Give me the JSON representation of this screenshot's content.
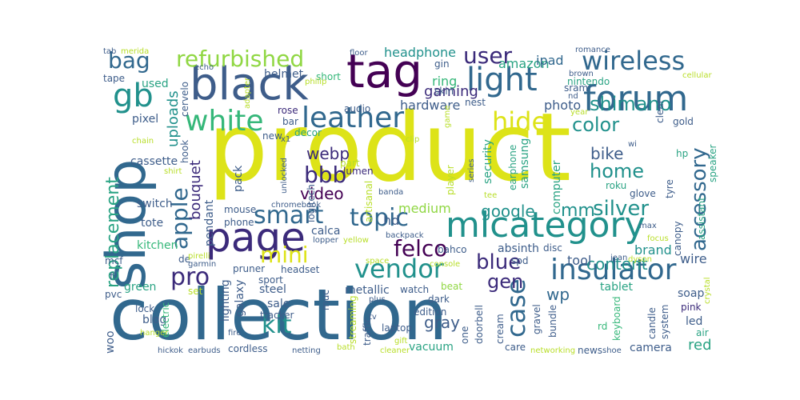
{
  "palette": {
    "dark_purple": "#440154",
    "indigo": "#3b2a7a",
    "blue": "#31688e",
    "slate": "#3e5d8a",
    "teal": "#21918c",
    "teal_green": "#29a383",
    "green": "#35b779",
    "lime": "#90d743",
    "yellow": "#dde318",
    "light": "#b8de29"
  },
  "words": [
    {
      "text": "product",
      "color": "#dde318"
    },
    {
      "text": "collection",
      "color": "#31688e"
    },
    {
      "text": "shop",
      "color": "#31688e"
    },
    {
      "text": "black",
      "color": "#3e5d8a"
    },
    {
      "text": "tag",
      "color": "#440154"
    },
    {
      "text": "page",
      "color": "#3b2a7a"
    },
    {
      "text": "mlcategory",
      "color": "#21918c"
    },
    {
      "text": "forum",
      "color": "#31688e"
    },
    {
      "text": "light",
      "color": "#31688e"
    },
    {
      "text": "leather",
      "color": "#31688e"
    },
    {
      "text": "gb",
      "color": "#21918c"
    },
    {
      "text": "white",
      "color": "#35b779"
    },
    {
      "text": "wireless",
      "color": "#31688e"
    },
    {
      "text": "refurbished",
      "color": "#90d743"
    },
    {
      "text": "bag",
      "color": "#31688e"
    },
    {
      "text": "user",
      "color": "#3b2a7a"
    },
    {
      "text": "hide",
      "color": "#dde318"
    },
    {
      "text": "color",
      "color": "#21918c"
    },
    {
      "text": "shimano",
      "color": "#21918c"
    },
    {
      "text": "home",
      "color": "#21918c"
    },
    {
      "text": "smart",
      "color": "#31688e"
    },
    {
      "text": "topic",
      "color": "#31688e"
    },
    {
      "text": "insulator",
      "color": "#31688e"
    },
    {
      "text": "vendor",
      "color": "#21918c"
    },
    {
      "text": "mini",
      "color": "#dde318"
    },
    {
      "text": "pro",
      "color": "#3b2a7a"
    },
    {
      "text": "felco",
      "color": "#440154"
    },
    {
      "text": "blue",
      "color": "#3b2a7a"
    },
    {
      "text": "case",
      "color": "#31688e"
    },
    {
      "text": "gen",
      "color": "#3b2a7a"
    },
    {
      "text": "mm",
      "color": "#21918c"
    },
    {
      "text": "silver",
      "color": "#21918c"
    },
    {
      "text": "accessory",
      "color": "#31688e"
    },
    {
      "text": "apple",
      "color": "#31688e"
    },
    {
      "text": "bbb",
      "color": "#3b2a7a"
    },
    {
      "text": "video",
      "color": "#440154"
    },
    {
      "text": "webp",
      "color": "#3b2a7a"
    },
    {
      "text": "kit",
      "color": "#21918c"
    },
    {
      "text": "replacement",
      "color": "#29a383"
    },
    {
      "text": "bouquet",
      "color": "#3b2a7a"
    },
    {
      "text": "uploads",
      "color": "#21918c"
    },
    {
      "text": "google",
      "color": "#21918c"
    },
    {
      "text": "bike",
      "color": "#3e5d8a"
    },
    {
      "text": "content",
      "color": "#21918c"
    },
    {
      "text": "wp",
      "color": "#31688e"
    },
    {
      "text": "gaming",
      "color": "#3b2a7a"
    },
    {
      "text": "hardware",
      "color": "#3e5d8a"
    },
    {
      "text": "headphone",
      "color": "#21918c"
    },
    {
      "text": "amazon",
      "color": "#29a383"
    },
    {
      "text": "ipad",
      "color": "#31688e"
    },
    {
      "text": "ring",
      "color": "#35b779"
    },
    {
      "text": "hd",
      "color": "#3e5d8a"
    },
    {
      "text": "medium",
      "color": "#90d743"
    },
    {
      "text": "brand",
      "color": "#21918c"
    },
    {
      "text": "red",
      "color": "#29a383"
    },
    {
      "text": "tool",
      "color": "#3e5d8a"
    },
    {
      "text": "wire",
      "color": "#3e5d8a"
    },
    {
      "text": "gray",
      "color": "#3e5d8a"
    },
    {
      "text": "blog",
      "color": "#3e5d8a"
    },
    {
      "text": "sale",
      "color": "#3e5d8a"
    },
    {
      "text": "steel",
      "color": "#3e5d8a"
    },
    {
      "text": "green",
      "color": "#29a383"
    },
    {
      "text": "kitchen",
      "color": "#35b779"
    },
    {
      "text": "tote",
      "color": "#3e5d8a"
    },
    {
      "text": "switch",
      "color": "#3e5d8a"
    },
    {
      "text": "cassette",
      "color": "#3e5d8a"
    },
    {
      "text": "pixel",
      "color": "#3e5d8a"
    },
    {
      "text": "used",
      "color": "#29a383"
    },
    {
      "text": "tape",
      "color": "#3e5d8a"
    },
    {
      "text": "helmet",
      "color": "#3e5d8a"
    },
    {
      "text": "short",
      "color": "#35b779"
    },
    {
      "text": "rose",
      "color": "#3b2a7a"
    },
    {
      "text": "audio",
      "color": "#3e5d8a"
    },
    {
      "text": "bar",
      "color": "#3e5d8a"
    },
    {
      "text": "decor",
      "color": "#29a383"
    },
    {
      "text": "new",
      "color": "#3e5d8a"
    },
    {
      "text": "pack",
      "color": "#3e5d8a"
    },
    {
      "text": "mouse",
      "color": "#3e5d8a"
    },
    {
      "text": "phone",
      "color": "#3e5d8a"
    },
    {
      "text": "calca",
      "color": "#3e5d8a"
    },
    {
      "text": "lumen",
      "color": "#3b2a7a"
    },
    {
      "text": "security",
      "color": "#29a383"
    },
    {
      "text": "photo",
      "color": "#3e5d8a"
    },
    {
      "text": "computer",
      "color": "#29a383"
    },
    {
      "text": "samsung",
      "color": "#29a383"
    },
    {
      "text": "earphone",
      "color": "#29a383"
    },
    {
      "text": "absinth",
      "color": "#3e5d8a"
    },
    {
      "text": "disc",
      "color": "#3e5d8a"
    },
    {
      "text": "spd",
      "color": "#3e5d8a"
    },
    {
      "text": "tablet",
      "color": "#29a383"
    },
    {
      "text": "soap",
      "color": "#3e5d8a"
    },
    {
      "text": "pink",
      "color": "#3b2a7a"
    },
    {
      "text": "led",
      "color": "#3e5d8a"
    },
    {
      "text": "air",
      "color": "#29a383"
    },
    {
      "text": "camera",
      "color": "#3e5d8a"
    },
    {
      "text": "news",
      "color": "#3e5d8a"
    },
    {
      "text": "shoe",
      "color": "#3e5d8a"
    },
    {
      "text": "care",
      "color": "#3e5d8a"
    },
    {
      "text": "bundle",
      "color": "#3e5d8a"
    },
    {
      "text": "gravel",
      "color": "#3e5d8a"
    },
    {
      "text": "cream",
      "color": "#3e5d8a"
    },
    {
      "text": "edition",
      "color": "#3e5d8a"
    },
    {
      "text": "beat",
      "color": "#90d743"
    },
    {
      "text": "watch",
      "color": "#3e5d8a"
    },
    {
      "text": "metallic",
      "color": "#3e5d8a"
    },
    {
      "text": "streaming",
      "color": "#b8de29"
    },
    {
      "text": "traffic",
      "color": "#3e5d8a"
    },
    {
      "text": "laptop",
      "color": "#3e5d8a"
    },
    {
      "text": "doorbell",
      "color": "#3e5d8a"
    },
    {
      "text": "one",
      "color": "#3e5d8a"
    },
    {
      "text": "vacuum",
      "color": "#29a383"
    },
    {
      "text": "cordless",
      "color": "#3e5d8a"
    },
    {
      "text": "earbuds",
      "color": "#3e5d8a"
    },
    {
      "text": "netting",
      "color": "#3e5d8a"
    },
    {
      "text": "bath",
      "color": "#b8de29"
    },
    {
      "text": "cleaner",
      "color": "#b8de29"
    },
    {
      "text": "gift",
      "color": "#b8de29"
    },
    {
      "text": "hickok",
      "color": "#3e5d8a"
    },
    {
      "text": "woo",
      "color": "#3e5d8a"
    },
    {
      "text": "fi",
      "color": "#3e5d8a"
    },
    {
      "text": "pvc",
      "color": "#3e5d8a"
    },
    {
      "text": "mcf",
      "color": "#3e5d8a"
    },
    {
      "text": "lock",
      "color": "#3e5d8a"
    },
    {
      "text": "electric",
      "color": "#35b779"
    },
    {
      "text": "hanger",
      "color": "#b8de29"
    },
    {
      "text": "fire",
      "color": "#3e5d8a"
    },
    {
      "text": "sport",
      "color": "#3e5d8a"
    },
    {
      "text": "lighting",
      "color": "#3e5d8a"
    },
    {
      "text": "galaxy",
      "color": "#3e5d8a"
    },
    {
      "text": "tracker",
      "color": "#3e5d8a"
    },
    {
      "text": "headset",
      "color": "#3e5d8a"
    },
    {
      "text": "pruner",
      "color": "#3e5d8a"
    },
    {
      "text": "set",
      "color": "#b8de29"
    },
    {
      "text": "de",
      "color": "#3e5d8a"
    },
    {
      "text": "garmin",
      "color": "#3e5d8a"
    },
    {
      "text": "pendant",
      "color": "#3e5d8a"
    },
    {
      "text": "logitech",
      "color": "#3e5d8a"
    },
    {
      "text": "muc",
      "color": "#3e5d8a"
    },
    {
      "text": "tv",
      "color": "#3e5d8a"
    },
    {
      "text": "plus",
      "color": "#3e5d8a"
    },
    {
      "text": "dark",
      "color": "#3e5d8a"
    },
    {
      "text": "console",
      "color": "#b8de29"
    },
    {
      "text": "space",
      "color": "#b8de29"
    },
    {
      "text": "bahco",
      "color": "#3e5d8a"
    },
    {
      "text": "backpack",
      "color": "#3e5d8a"
    },
    {
      "text": "yellow",
      "color": "#b8de29"
    },
    {
      "text": "lopper",
      "color": "#3e5d8a"
    },
    {
      "text": "banda",
      "color": "#3e5d8a"
    },
    {
      "text": "tee",
      "color": "#b8de29"
    },
    {
      "text": "focus",
      "color": "#b8de29"
    },
    {
      "text": "max",
      "color": "#3e5d8a"
    },
    {
      "text": "jean",
      "color": "#3e5d8a"
    },
    {
      "text": "dyson",
      "color": "#b8de29"
    },
    {
      "text": "rd",
      "color": "#35b779"
    },
    {
      "text": "keyboard",
      "color": "#35b779"
    },
    {
      "text": "candle",
      "color": "#3e5d8a"
    },
    {
      "text": "system",
      "color": "#3e5d8a"
    },
    {
      "text": "glove",
      "color": "#3e5d8a"
    },
    {
      "text": "roku",
      "color": "#29a383"
    },
    {
      "text": "wi",
      "color": "#3e5d8a"
    },
    {
      "text": "speaker",
      "color": "#29a383"
    },
    {
      "text": "assistant",
      "color": "#29a383"
    },
    {
      "text": "canopy",
      "color": "#3e5d8a"
    },
    {
      "text": "crystal",
      "color": "#b8de29"
    },
    {
      "text": "tyre",
      "color": "#3e5d8a"
    },
    {
      "text": "hp",
      "color": "#29a383"
    },
    {
      "text": "gold",
      "color": "#3e5d8a"
    },
    {
      "text": "clear",
      "color": "#3e5d8a"
    },
    {
      "text": "cellular",
      "color": "#b8de29"
    },
    {
      "text": "romance",
      "color": "#3e5d8a"
    },
    {
      "text": "brown",
      "color": "#3e5d8a"
    },
    {
      "text": "nintendo",
      "color": "#29a383"
    },
    {
      "text": "sram",
      "color": "#3e5d8a"
    },
    {
      "text": "nd",
      "color": "#3e5d8a"
    },
    {
      "text": "year",
      "color": "#b8de29"
    },
    {
      "text": "nest",
      "color": "#3e5d8a"
    },
    {
      "text": "skin",
      "color": "#3e5d8a"
    },
    {
      "text": "gin",
      "color": "#3e5d8a"
    },
    {
      "text": "floor",
      "color": "#3e5d8a"
    },
    {
      "text": "philip",
      "color": "#b8de29"
    },
    {
      "text": "adapter",
      "color": "#b8de29"
    },
    {
      "text": "cervelo",
      "color": "#3e5d8a"
    },
    {
      "text": "echo",
      "color": "#3e5d8a"
    },
    {
      "text": "tab",
      "color": "#3e5d8a"
    },
    {
      "text": "merida",
      "color": "#b8de29"
    },
    {
      "text": "x1",
      "color": "#3e5d8a"
    },
    {
      "text": "chromebook",
      "color": "#3e5d8a"
    },
    {
      "text": "part",
      "color": "#b8de29"
    },
    {
      "text": "artisanal",
      "color": "#b8de29"
    },
    {
      "text": "unlocked",
      "color": "#3e5d8a"
    },
    {
      "text": "clip",
      "color": "#b8de29"
    },
    {
      "text": "game",
      "color": "#b8de29"
    },
    {
      "text": "player",
      "color": "#b8de29"
    },
    {
      "text": "series",
      "color": "#3e5d8a"
    },
    {
      "text": "chain",
      "color": "#b8de29"
    },
    {
      "text": "hook",
      "color": "#3e5d8a"
    },
    {
      "text": "shirt",
      "color": "#b8de29"
    },
    {
      "text": "pirelli",
      "color": "#b8de29"
    },
    {
      "text": "networking",
      "color": "#b8de29"
    }
  ]
}
